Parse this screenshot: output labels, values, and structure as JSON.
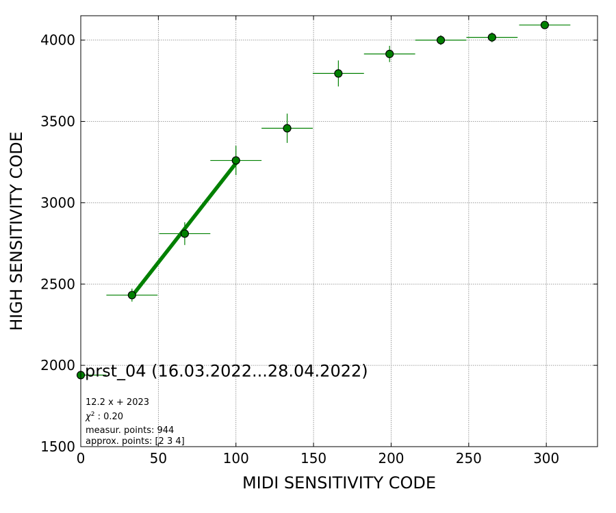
{
  "chart_data": {
    "type": "scatter",
    "xlabel": "MIDI SENSITIVITY CODE",
    "ylabel": "HIGH SENSITIVITY CODE",
    "xlim": [
      0,
      333
    ],
    "ylim": [
      1500,
      4150
    ],
    "x_ticks": [
      0,
      50,
      100,
      150,
      200,
      250,
      300
    ],
    "y_ticks": [
      1500,
      2000,
      2500,
      3000,
      3500,
      4000
    ],
    "grid": true,
    "colors": {
      "series": "#008000",
      "marker_edge": "#000000",
      "grid": "#808080"
    },
    "series": [
      {
        "name": "prst_04 (16.03.2022...28.04.2022)",
        "points": [
          {
            "x": 0,
            "y": 1940,
            "xerr": 16.5,
            "yerr": 0
          },
          {
            "x": 33,
            "y": 2432,
            "xerr": 16.5,
            "yerr": 40
          },
          {
            "x": 67,
            "y": 2810,
            "xerr": 16.5,
            "yerr": 70
          },
          {
            "x": 100,
            "y": 3260,
            "xerr": 16.5,
            "yerr": 90
          },
          {
            "x": 133,
            "y": 3458,
            "xerr": 16.5,
            "yerr": 90
          },
          {
            "x": 166,
            "y": 3795,
            "xerr": 16.5,
            "yerr": 80
          },
          {
            "x": 199,
            "y": 3915,
            "xerr": 16.5,
            "yerr": 50
          },
          {
            "x": 232,
            "y": 4000,
            "xerr": 16.5,
            "yerr": 30
          },
          {
            "x": 265,
            "y": 4017,
            "xerr": 16.5,
            "yerr": 30
          },
          {
            "x": 299,
            "y": 4093,
            "xerr": 16.5,
            "yerr": 15
          }
        ]
      }
    ],
    "fit": {
      "x_start": 33,
      "x_end": 100,
      "slope": 12.2,
      "intercept": 2023
    },
    "legend_placement": "lower-left",
    "legend_label": "prst_04 (16.03.2022...28.04.2022)",
    "annotations": {
      "fit_formula": "12.2 x + 2023",
      "chi2_symbol": "χ",
      "chi2_exp": "2",
      "chi2_value": " : 0.20",
      "measur_points": "measur. points: 944",
      "approx_points": "approx. points: [2 3 4]"
    }
  }
}
